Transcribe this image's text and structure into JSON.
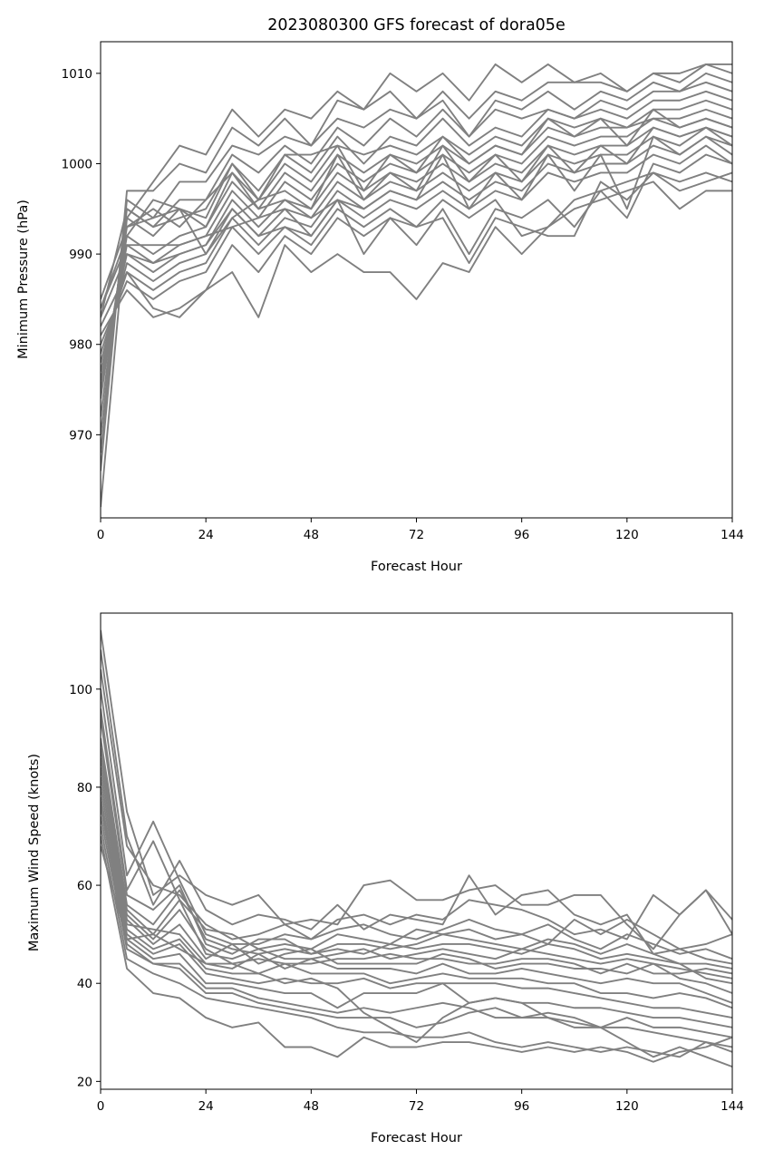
{
  "chart_data": [
    {
      "type": "line",
      "title": "2023080300 GFS forecast of dora05e",
      "xlabel": "Forecast Hour",
      "ylabel": "Minimum Pressure (hPa)",
      "xlim": [
        0,
        144
      ],
      "ylim": [
        960.8,
        1013.5
      ],
      "xticks": [
        0,
        24,
        48,
        72,
        96,
        120,
        144
      ],
      "yticks": [
        970,
        980,
        990,
        1000,
        1010
      ],
      "line_color": "#808080",
      "grid": false,
      "x": [
        0,
        6,
        12,
        18,
        24,
        30,
        36,
        42,
        48,
        54,
        60,
        66,
        72,
        78,
        84,
        90,
        96,
        102,
        108,
        114,
        120,
        126,
        132,
        138,
        144
      ],
      "series": [
        {
          "values": [
            962,
            994,
            998,
            1002,
            1001,
            1006,
            1003,
            1006,
            1005,
            1008,
            1006,
            1010,
            1008,
            1010,
            1007,
            1011,
            1009,
            1011,
            1009,
            1010,
            1008,
            1010,
            1010,
            1011,
            1011
          ]
        },
        {
          "values": [
            966,
            997,
            997,
            1000,
            999,
            1004,
            1002,
            1005,
            1002,
            1007,
            1006,
            1008,
            1005,
            1008,
            1005,
            1008,
            1007,
            1009,
            1009,
            1009,
            1008,
            1010,
            1009,
            1011,
            1010
          ]
        },
        {
          "values": [
            968,
            996,
            994,
            998,
            998,
            1002,
            1001,
            1003,
            1002,
            1005,
            1004,
            1006,
            1005,
            1007,
            1003,
            1007,
            1006,
            1008,
            1006,
            1008,
            1007,
            1009,
            1008,
            1010,
            1009
          ]
        },
        {
          "values": [
            970,
            995,
            993,
            996,
            996,
            1001,
            999,
            1002,
            1000,
            1004,
            1002,
            1005,
            1003,
            1006,
            1003,
            1006,
            1005,
            1006,
            1005,
            1007,
            1006,
            1008,
            1008,
            1009,
            1008
          ]
        },
        {
          "values": [
            972,
            994,
            992,
            995,
            994,
            1000,
            997,
            1001,
            999,
            1003,
            1000,
            1003,
            1002,
            1005,
            1002,
            1004,
            1003,
            1006,
            1005,
            1006,
            1005,
            1007,
            1007,
            1008,
            1007
          ]
        },
        {
          "values": [
            974,
            993,
            995,
            993,
            996,
            999,
            996,
            1000,
            998,
            1002,
            1001,
            1002,
            1001,
            1003,
            1001,
            1003,
            1002,
            1005,
            1004,
            1005,
            1004,
            1006,
            1006,
            1007,
            1006
          ]
        },
        {
          "values": [
            975,
            992,
            990,
            992,
            993,
            998,
            995,
            999,
            997,
            1001,
            999,
            1001,
            1000,
            1002,
            1000,
            1002,
            1001,
            1004,
            1003,
            1004,
            1004,
            1005,
            1005,
            1006,
            1005
          ]
        },
        {
          "values": [
            976,
            991,
            989,
            991,
            992,
            997,
            994,
            998,
            996,
            1000,
            998,
            1000,
            999,
            1001,
            999,
            1001,
            1000,
            1003,
            1002,
            1003,
            1003,
            1005,
            1004,
            1005,
            1004
          ]
        },
        {
          "values": [
            977,
            990,
            988,
            990,
            991,
            996,
            993,
            996,
            995,
            999,
            997,
            999,
            998,
            1000,
            998,
            1000,
            999,
            1002,
            1001,
            1002,
            1002,
            1004,
            1003,
            1004,
            1003
          ]
        },
        {
          "values": [
            978,
            989,
            987,
            989,
            990,
            995,
            992,
            995,
            994,
            998,
            996,
            998,
            997,
            999,
            997,
            999,
            998,
            1001,
            1000,
            1001,
            1001,
            1003,
            1002,
            1004,
            1002
          ]
        },
        {
          "values": [
            979,
            988,
            986,
            988,
            989,
            994,
            991,
            994,
            993,
            997,
            995,
            997,
            996,
            998,
            996,
            998,
            997,
            1000,
            999,
            1000,
            1000,
            1002,
            1001,
            1003,
            1001
          ]
        },
        {
          "values": [
            980,
            987,
            985,
            987,
            988,
            993,
            990,
            993,
            992,
            996,
            994,
            996,
            995,
            997,
            995,
            997,
            996,
            999,
            998,
            999,
            999,
            1001,
            1000,
            1002,
            1000
          ]
        },
        {
          "values": [
            981,
            986,
            983,
            984,
            986,
            988,
            983,
            991,
            988,
            990,
            988,
            988,
            985,
            989,
            988,
            993,
            990,
            993,
            995,
            996,
            997,
            998,
            995,
            997,
            997
          ]
        },
        {
          "values": [
            982,
            988,
            984,
            983,
            986,
            991,
            988,
            992,
            990,
            994,
            992,
            994,
            993,
            996,
            994,
            996,
            992,
            993,
            996,
            997,
            998,
            999,
            998,
            999,
            998
          ]
        },
        {
          "values": [
            983,
            990,
            989,
            990,
            991,
            995,
            992,
            993,
            991,
            995,
            993,
            995,
            993,
            994,
            989,
            994,
            993,
            992,
            992,
            998,
            996,
            999,
            997,
            998,
            999
          ]
        },
        {
          "values": [
            984,
            991,
            991,
            991,
            992,
            993,
            994,
            995,
            992,
            996,
            990,
            994,
            991,
            995,
            990,
            995,
            994,
            996,
            993,
            997,
            994,
            1000,
            999,
            1001,
            1000
          ]
        },
        {
          "values": [
            985,
            993,
            994,
            995,
            993,
            999,
            995,
            996,
            994,
            996,
            995,
            997,
            996,
            1001,
            995,
            999,
            996,
            1001,
            997,
            1001,
            995,
            1003,
            1001,
            1003,
            1002
          ]
        },
        {
          "values": [
            984,
            992,
            996,
            995,
            990,
            994,
            996,
            997,
            995,
            1001,
            996,
            999,
            997,
            1002,
            998,
            1001,
            998,
            1002,
            999,
            1002,
            1000,
            1004,
            1003,
            1004,
            1003
          ]
        },
        {
          "values": [
            983,
            995,
            993,
            994,
            995,
            1000,
            996,
            1001,
            1001,
            1002,
            997,
            1001,
            999,
            1003,
            1000,
            1002,
            1001,
            1005,
            1003,
            1005,
            1002,
            1006,
            1004,
            1005,
            1004
          ]
        }
      ]
    },
    {
      "type": "line",
      "title": "",
      "xlabel": "Forecast Hour",
      "ylabel": "Maximum Wind Speed (knots)",
      "xlim": [
        0,
        144
      ],
      "ylim": [
        18.4,
        115.5
      ],
      "xticks": [
        0,
        24,
        48,
        72,
        96,
        120,
        144
      ],
      "yticks": [
        20,
        40,
        60,
        80,
        100
      ],
      "line_color": "#808080",
      "grid": false,
      "x": [
        0,
        6,
        12,
        18,
        24,
        30,
        36,
        42,
        48,
        54,
        60,
        66,
        72,
        78,
        84,
        90,
        96,
        102,
        108,
        114,
        120,
        126,
        132,
        138,
        144
      ],
      "series": [
        {
          "values": [
            112,
            75,
            58,
            62,
            58,
            56,
            58,
            52,
            53,
            52,
            60,
            61,
            57,
            57,
            59,
            60,
            56,
            56,
            58,
            58,
            52,
            47,
            54,
            59,
            50
          ]
        },
        {
          "values": [
            108,
            70,
            56,
            65,
            55,
            52,
            54,
            53,
            51,
            56,
            51,
            54,
            53,
            52,
            62,
            54,
            58,
            59,
            54,
            52,
            54,
            46,
            44,
            41,
            40
          ]
        },
        {
          "values": [
            104,
            68,
            60,
            58,
            52,
            49,
            50,
            52,
            49,
            53,
            54,
            52,
            54,
            53,
            57,
            56,
            55,
            53,
            50,
            51,
            49,
            58,
            54,
            59,
            53
          ]
        },
        {
          "values": [
            100,
            62,
            73,
            61,
            50,
            48,
            48,
            50,
            49,
            51,
            52,
            50,
            49,
            51,
            53,
            51,
            50,
            48,
            53,
            50,
            53,
            50,
            47,
            48,
            50
          ]
        },
        {
          "values": [
            96,
            59,
            69,
            57,
            51,
            50,
            47,
            48,
            47,
            50,
            49,
            48,
            51,
            50,
            51,
            49,
            50,
            52,
            49,
            47,
            50,
            48,
            46,
            47,
            45
          ]
        },
        {
          "values": [
            94,
            58,
            55,
            60,
            48,
            46,
            49,
            49,
            46,
            48,
            48,
            47,
            48,
            50,
            49,
            48,
            47,
            49,
            48,
            46,
            48,
            46,
            47,
            45,
            44
          ]
        },
        {
          "values": [
            90,
            56,
            52,
            59,
            49,
            47,
            46,
            47,
            46,
            47,
            46,
            48,
            47,
            48,
            48,
            47,
            46,
            48,
            47,
            45,
            46,
            45,
            44,
            44,
            43
          ]
        },
        {
          "values": [
            88,
            55,
            50,
            57,
            46,
            45,
            47,
            45,
            45,
            46,
            47,
            45,
            46,
            47,
            46,
            45,
            47,
            46,
            45,
            44,
            45,
            44,
            43,
            42,
            41
          ]
        },
        {
          "values": [
            86,
            54,
            49,
            55,
            47,
            44,
            45,
            44,
            44,
            45,
            45,
            46,
            45,
            45,
            44,
            44,
            45,
            45,
            44,
            42,
            44,
            42,
            42,
            43,
            42
          ]
        },
        {
          "values": [
            84,
            53,
            48,
            52,
            45,
            48,
            44,
            46,
            47,
            44,
            44,
            44,
            44,
            46,
            45,
            43,
            44,
            44,
            43,
            43,
            42,
            44,
            41,
            40,
            38
          ]
        },
        {
          "values": [
            82,
            52,
            51,
            50,
            44,
            43,
            46,
            43,
            45,
            43,
            43,
            43,
            42,
            44,
            42,
            42,
            43,
            42,
            41,
            40,
            41,
            40,
            40,
            38,
            36
          ]
        },
        {
          "values": [
            80,
            51,
            47,
            49,
            43,
            42,
            42,
            44,
            42,
            42,
            42,
            40,
            41,
            42,
            41,
            41,
            41,
            40,
            40,
            38,
            38,
            37,
            38,
            37,
            35
          ]
        },
        {
          "values": [
            78,
            50,
            46,
            48,
            42,
            41,
            40,
            41,
            40,
            40,
            41,
            39,
            40,
            40,
            40,
            40,
            39,
            39,
            38,
            37,
            36,
            35,
            35,
            34,
            33
          ]
        },
        {
          "values": [
            77,
            49,
            45,
            46,
            40,
            40,
            39,
            38,
            38,
            35,
            38,
            38,
            38,
            40,
            36,
            37,
            36,
            36,
            35,
            35,
            34,
            33,
            33,
            32,
            31
          ]
        },
        {
          "values": [
            76,
            48,
            44,
            44,
            39,
            39,
            37,
            36,
            35,
            34,
            35,
            34,
            35,
            36,
            35,
            33,
            33,
            34,
            33,
            31,
            33,
            31,
            31,
            30,
            29
          ]
        },
        {
          "values": [
            74,
            47,
            44,
            43,
            38,
            38,
            36,
            35,
            34,
            33,
            33,
            33,
            31,
            32,
            34,
            35,
            33,
            33,
            32,
            31,
            31,
            30,
            29,
            28,
            27
          ]
        },
        {
          "values": [
            72,
            45,
            42,
            40,
            37,
            36,
            35,
            34,
            33,
            31,
            30,
            30,
            29,
            29,
            30,
            28,
            27,
            28,
            27,
            26,
            27,
            26,
            25,
            28,
            26
          ]
        },
        {
          "values": [
            70,
            43,
            38,
            37,
            33,
            31,
            32,
            27,
            27,
            25,
            29,
            27,
            27,
            28,
            28,
            27,
            26,
            27,
            26,
            27,
            26,
            24,
            26,
            27,
            29
          ]
        },
        {
          "values": [
            68,
            49,
            50,
            47,
            44,
            44,
            42,
            40,
            41,
            39,
            34,
            31,
            28,
            33,
            36,
            37,
            36,
            33,
            31,
            31,
            28,
            25,
            27,
            25,
            23
          ]
        }
      ]
    }
  ]
}
